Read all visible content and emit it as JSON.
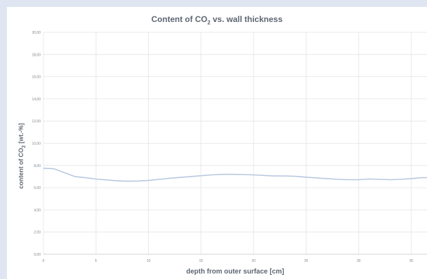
{
  "chart_data": {
    "type": "line",
    "title": {
      "main": "Content of CO",
      "sub": "2",
      "rest": " vs. wall thickness"
    },
    "xlabel": "depth from outer surface [cm]",
    "ylabel": {
      "main": "content of CO",
      "sub": "2",
      "rest": " [wt.-%]"
    },
    "xlim": [
      0,
      36.5
    ],
    "ylim": [
      0,
      20
    ],
    "xticks": [
      0,
      5,
      10,
      15,
      20,
      25,
      30,
      35
    ],
    "yticks": [
      "0,00",
      "2,00",
      "4,00",
      "6,00",
      "8,00",
      "10,00",
      "12,00",
      "14,00",
      "16,00",
      "18,00",
      "20,00"
    ],
    "grid": true,
    "line_color": "#b8c8e0",
    "series": [
      {
        "x": [
          0,
          1,
          2,
          3,
          4,
          5,
          6,
          7,
          8,
          9,
          10,
          11,
          12,
          13,
          14,
          15,
          16,
          17,
          18,
          19,
          20,
          21,
          22,
          23,
          24,
          25,
          26,
          27,
          28,
          29,
          30,
          31,
          32,
          33,
          34,
          35,
          36,
          36.5
        ],
        "y": [
          7.75,
          7.7,
          7.35,
          7.0,
          6.9,
          6.78,
          6.7,
          6.62,
          6.58,
          6.6,
          6.65,
          6.75,
          6.85,
          6.92,
          7.0,
          7.08,
          7.15,
          7.2,
          7.2,
          7.18,
          7.15,
          7.1,
          7.05,
          7.05,
          7.02,
          6.95,
          6.88,
          6.82,
          6.75,
          6.72,
          6.72,
          6.78,
          6.75,
          6.72,
          6.75,
          6.82,
          6.9,
          6.9
        ]
      }
    ]
  }
}
